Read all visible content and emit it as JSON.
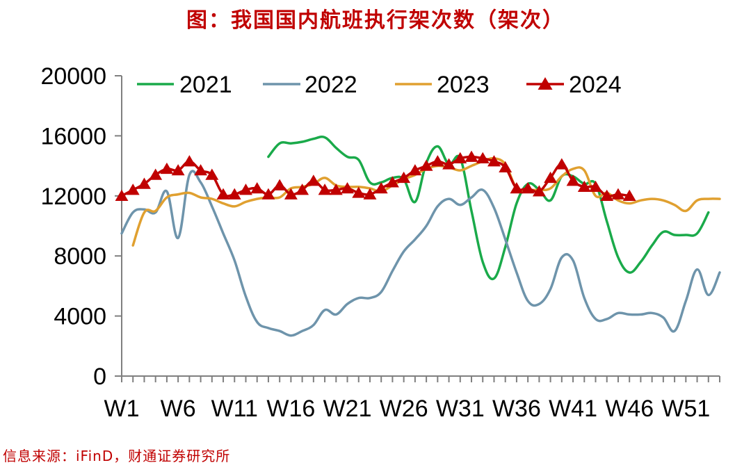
{
  "title": "图：我国国内航班执行架次数（架次）",
  "source": "信息来源：iFinD，财通证券研究所",
  "chart_data": {
    "type": "line",
    "title": "图：我国国内航班执行架次数（架次）",
    "xlabel": "",
    "ylabel": "",
    "ylim": [
      0,
      20000
    ],
    "y_ticks": [
      "0",
      "4000",
      "8000",
      "12000",
      "16000",
      "20000"
    ],
    "x_ticks": [
      {
        "week": 1,
        "label": "W1"
      },
      {
        "week": 6,
        "label": "W6"
      },
      {
        "week": 11,
        "label": "W11"
      },
      {
        "week": 16,
        "label": "W16"
      },
      {
        "week": 21,
        "label": "W21"
      },
      {
        "week": 26,
        "label": "W26"
      },
      {
        "week": 31,
        "label": "W31"
      },
      {
        "week": 36,
        "label": "W36"
      },
      {
        "week": 41,
        "label": "W41"
      },
      {
        "week": 46,
        "label": "W46"
      },
      {
        "week": 51,
        "label": "W51"
      }
    ],
    "grid": false,
    "legend_position": "top",
    "series": [
      {
        "name": "2021",
        "color": "#1aaa4a",
        "marker": "none",
        "points": [
          [
            14,
            14600
          ],
          [
            15,
            15500
          ],
          [
            16,
            15500
          ],
          [
            17,
            15600
          ],
          [
            18,
            15800
          ],
          [
            19,
            15900
          ],
          [
            20,
            15200
          ],
          [
            21,
            14600
          ],
          [
            22,
            14400
          ],
          [
            23,
            12900
          ],
          [
            24,
            12900
          ],
          [
            25,
            13200
          ],
          [
            26,
            13100
          ],
          [
            27,
            11600
          ],
          [
            28,
            14200
          ],
          [
            29,
            15300
          ],
          [
            30,
            14100
          ],
          [
            31,
            14500
          ],
          [
            32,
            11000
          ],
          [
            33,
            7600
          ],
          [
            34,
            6500
          ],
          [
            35,
            8600
          ],
          [
            36,
            11500
          ],
          [
            37,
            12800
          ],
          [
            38,
            12400
          ],
          [
            39,
            11700
          ],
          [
            40,
            13300
          ],
          [
            41,
            13300
          ],
          [
            42,
            12800
          ],
          [
            43,
            12800
          ],
          [
            44,
            10300
          ],
          [
            45,
            7900
          ],
          [
            46,
            6900
          ],
          [
            47,
            7600
          ],
          [
            48,
            8700
          ],
          [
            49,
            9600
          ],
          [
            50,
            9400
          ],
          [
            51,
            9400
          ],
          [
            52,
            9500
          ],
          [
            53,
            10900
          ]
        ]
      },
      {
        "name": "2022",
        "color": "#6e94ab",
        "marker": "none",
        "points": [
          [
            1,
            9500
          ],
          [
            2,
            10900
          ],
          [
            3,
            11100
          ],
          [
            4,
            10900
          ],
          [
            5,
            12300
          ],
          [
            6,
            9200
          ],
          [
            7,
            13400
          ],
          [
            8,
            12900
          ],
          [
            9,
            11300
          ],
          [
            10,
            9500
          ],
          [
            11,
            7700
          ],
          [
            12,
            5300
          ],
          [
            13,
            3600
          ],
          [
            14,
            3200
          ],
          [
            15,
            3000
          ],
          [
            16,
            2700
          ],
          [
            17,
            3000
          ],
          [
            18,
            3400
          ],
          [
            19,
            4400
          ],
          [
            20,
            4100
          ],
          [
            21,
            4800
          ],
          [
            22,
            5200
          ],
          [
            23,
            5200
          ],
          [
            24,
            5600
          ],
          [
            25,
            7000
          ],
          [
            26,
            8300
          ],
          [
            27,
            9100
          ],
          [
            28,
            10000
          ],
          [
            29,
            11300
          ],
          [
            30,
            11800
          ],
          [
            31,
            11400
          ],
          [
            32,
            11900
          ],
          [
            33,
            12400
          ],
          [
            34,
            11200
          ],
          [
            35,
            9100
          ],
          [
            36,
            6900
          ],
          [
            37,
            5000
          ],
          [
            38,
            4800
          ],
          [
            39,
            5800
          ],
          [
            40,
            7900
          ],
          [
            41,
            7700
          ],
          [
            42,
            5200
          ],
          [
            43,
            3800
          ],
          [
            44,
            3800
          ],
          [
            45,
            4200
          ],
          [
            46,
            4100
          ],
          [
            47,
            4100
          ],
          [
            48,
            4200
          ],
          [
            49,
            3900
          ],
          [
            50,
            3000
          ],
          [
            51,
            5000
          ],
          [
            52,
            7100
          ],
          [
            53,
            5400
          ],
          [
            54,
            6900
          ]
        ]
      },
      {
        "name": "2023",
        "color": "#e0a030",
        "marker": "none",
        "points": [
          [
            2,
            8700
          ],
          [
            3,
            10900
          ],
          [
            4,
            11000
          ],
          [
            5,
            11900
          ],
          [
            6,
            12100
          ],
          [
            7,
            12200
          ],
          [
            8,
            11900
          ],
          [
            9,
            11800
          ],
          [
            10,
            11500
          ],
          [
            11,
            11300
          ],
          [
            12,
            11600
          ],
          [
            13,
            11800
          ],
          [
            14,
            11900
          ],
          [
            15,
            11900
          ],
          [
            16,
            12500
          ],
          [
            17,
            12600
          ],
          [
            18,
            12800
          ],
          [
            19,
            13200
          ],
          [
            20,
            12700
          ],
          [
            21,
            12600
          ],
          [
            22,
            12600
          ],
          [
            23,
            12500
          ],
          [
            24,
            12300
          ],
          [
            25,
            12700
          ],
          [
            26,
            13100
          ],
          [
            27,
            13400
          ],
          [
            28,
            13800
          ],
          [
            29,
            14000
          ],
          [
            30,
            13900
          ],
          [
            31,
            13700
          ],
          [
            32,
            14000
          ],
          [
            33,
            14300
          ],
          [
            34,
            14500
          ],
          [
            35,
            14100
          ],
          [
            36,
            12500
          ],
          [
            37,
            12400
          ],
          [
            38,
            12400
          ],
          [
            39,
            12500
          ],
          [
            40,
            13300
          ],
          [
            41,
            13800
          ],
          [
            42,
            13700
          ],
          [
            43,
            12000
          ],
          [
            44,
            12200
          ],
          [
            45,
            11700
          ],
          [
            46,
            11500
          ],
          [
            47,
            11700
          ],
          [
            48,
            11800
          ],
          [
            49,
            11700
          ],
          [
            50,
            11400
          ],
          [
            51,
            11000
          ],
          [
            52,
            11700
          ],
          [
            53,
            11800
          ],
          [
            54,
            11800
          ]
        ]
      },
      {
        "name": "2024",
        "color": "#c00000",
        "marker": "triangle",
        "points": [
          [
            1,
            12000
          ],
          [
            2,
            12400
          ],
          [
            3,
            12800
          ],
          [
            4,
            13400
          ],
          [
            5,
            13800
          ],
          [
            6,
            13700
          ],
          [
            7,
            14300
          ],
          [
            8,
            13700
          ],
          [
            9,
            13400
          ],
          [
            10,
            12100
          ],
          [
            11,
            12100
          ],
          [
            12,
            12400
          ],
          [
            13,
            12500
          ],
          [
            14,
            12100
          ],
          [
            15,
            12700
          ],
          [
            16,
            12100
          ],
          [
            17,
            12400
          ],
          [
            18,
            13000
          ],
          [
            19,
            12400
          ],
          [
            20,
            12400
          ],
          [
            21,
            12500
          ],
          [
            22,
            12200
          ],
          [
            23,
            12100
          ],
          [
            24,
            12500
          ],
          [
            25,
            12900
          ],
          [
            26,
            13200
          ],
          [
            27,
            13700
          ],
          [
            28,
            14000
          ],
          [
            29,
            14300
          ],
          [
            30,
            14100
          ],
          [
            31,
            14500
          ],
          [
            32,
            14600
          ],
          [
            33,
            14500
          ],
          [
            34,
            14300
          ],
          [
            35,
            13900
          ],
          [
            36,
            12500
          ],
          [
            37,
            12500
          ],
          [
            38,
            12300
          ],
          [
            39,
            13200
          ],
          [
            40,
            14100
          ],
          [
            41,
            13000
          ],
          [
            42,
            12600
          ],
          [
            43,
            12600
          ],
          [
            44,
            12000
          ],
          [
            45,
            12100
          ],
          [
            46,
            12000
          ]
        ]
      }
    ]
  }
}
